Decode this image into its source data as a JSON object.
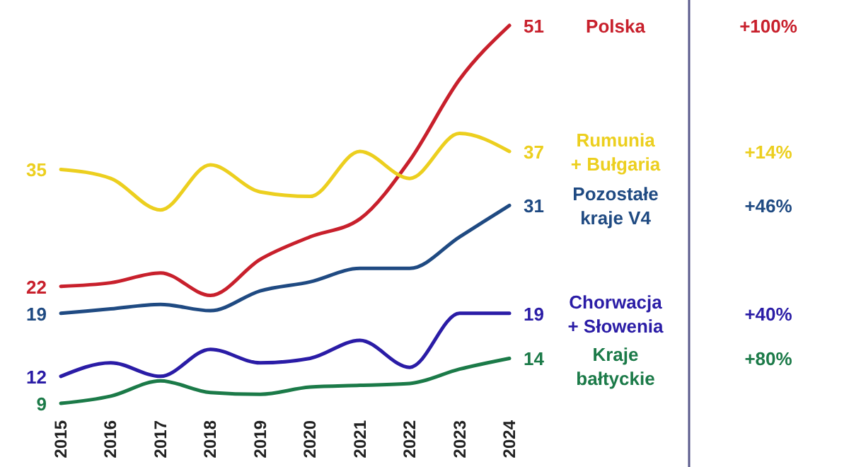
{
  "chart_data": {
    "type": "line",
    "categories": [
      "2015",
      "2016",
      "2017",
      "2018",
      "2019",
      "2020",
      "2021",
      "2022",
      "2023",
      "2024"
    ],
    "grid": false,
    "legend": false,
    "marker": "none",
    "line_style": "solid",
    "series": [
      {
        "name": "Polska",
        "color": "#c8202c",
        "values": [
          22,
          22.4,
          23.5,
          21,
          25,
          27.5,
          29.5,
          36,
          45,
          51
        ],
        "value_labels": [
          "22",
          null,
          null,
          null,
          null,
          null,
          null,
          null,
          null,
          "51"
        ]
      },
      {
        "name": "Rumunia + Bułgaria",
        "color": "#eccf1f",
        "values": [
          35,
          34,
          30.5,
          35.5,
          32.5,
          32,
          37,
          34,
          39,
          37
        ],
        "value_labels": [
          "35",
          null,
          null,
          null,
          null,
          null,
          null,
          null,
          null,
          "37"
        ]
      },
      {
        "name": "Pozostałe kraje V4",
        "color": "#1f4a82",
        "values": [
          19,
          19.5,
          20,
          19.3,
          21.5,
          22.5,
          24,
          24,
          27.5,
          31
        ],
        "value_labels": [
          "19",
          null,
          null,
          null,
          null,
          null,
          null,
          null,
          null,
          "31"
        ]
      },
      {
        "name": "Chorwacja + Słowenia",
        "color": "#2a1ca6",
        "values": [
          12,
          13.5,
          12,
          15,
          13.5,
          14,
          16,
          13,
          19,
          19
        ],
        "value_labels": [
          "12",
          null,
          null,
          null,
          null,
          null,
          null,
          null,
          null,
          "19"
        ]
      },
      {
        "name": "Kraje bałtyckie",
        "color": "#1b7a48",
        "values": [
          9,
          9.8,
          11.5,
          10.2,
          10,
          10.8,
          11,
          11.2,
          12.8,
          14
        ],
        "value_labels": [
          "9",
          null,
          null,
          null,
          null,
          null,
          null,
          null,
          null,
          "14"
        ]
      }
    ],
    "annotations": [
      "+100%",
      "+14%",
      "+46%",
      "+40%",
      "+80%"
    ]
  }
}
